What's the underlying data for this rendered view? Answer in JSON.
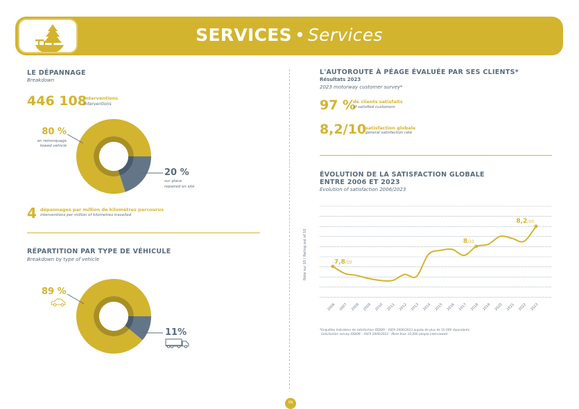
{
  "header": {
    "title_bold": "SERVICES",
    "separator": "•",
    "title_italic": "Services",
    "logo_icon": "picnic-tree-icon",
    "color": "#d3b42e"
  },
  "breakdown": {
    "title": "LE DÉPANNAGE",
    "subtitle": "Breakdown",
    "total_value": "446 108",
    "total_label_fr": "interventions",
    "total_label_en": "interventions",
    "towed_pct": "80 %",
    "towed_fr": "en remorquage",
    "towed_en": "towed vehicle",
    "onsite_pct": "20 %",
    "onsite_fr": "sur place",
    "onsite_en": "repaired on site",
    "per_million_value": "4",
    "per_million_fr": "dépannages par million de kilomètres parcourus",
    "per_million_en": "interventions per million of kilometres travelled"
  },
  "vehicle_type": {
    "title": "RÉPARTITION PAR TYPE DE VÉHICULE",
    "subtitle": "Breakdown by type of vehicle",
    "car_pct": "89 %",
    "car_icon": "car-icon",
    "truck_pct": "11%",
    "truck_icon": "truck-icon"
  },
  "survey": {
    "title": "L'AUTOROUTE À PÉAGE ÉVALUÉE PAR SES CLIENTS*",
    "results": "Résultats 2023",
    "subtitle": "2023 motorway customer survey*",
    "satisfied_value": "97 %",
    "satisfied_fr": "de clients satisfaits",
    "satisfied_en": "of satisfied customers",
    "rating_value": "8,2/10",
    "rating_fr": "satisfaction globale",
    "rating_en": "general satisfaction rate"
  },
  "evolution": {
    "title_line1": "ÉVOLUTION DE LA SATISFACTION GLOBALE",
    "title_line2": "ENTRE 2006 ET 2023",
    "subtitle": "Evolution of satisfaction 2006/2023",
    "footnote_fr": "*Enquêtes Indicateur de satisfaction IDDEM – ASFA 2006/2023 auprès de plus de 10 000 répondants",
    "footnote_en": "Satisfaction survey IDDEM – ASFA 2006/2023 - More than 10,000 people interviewed"
  },
  "page_number": "09",
  "chart_data": [
    {
      "type": "pie",
      "title": "LE DÉPANNAGE",
      "labels": [
        "en remorquage / towed vehicle",
        "sur place / repaired on site"
      ],
      "values": [
        80,
        20
      ],
      "colors": [
        "#d3b42e",
        "#627688"
      ]
    },
    {
      "type": "pie",
      "title": "RÉPARTITION PAR TYPE DE VÉHICULE",
      "labels": [
        "car",
        "truck"
      ],
      "values": [
        89,
        11
      ],
      "colors": [
        "#d3b42e",
        "#627688"
      ]
    },
    {
      "type": "line",
      "title": "ÉVOLUTION DE LA SATISFACTION GLOBALE ENTRE 2006 ET 2023",
      "ylabel": "Note sur 10 / Rating out of 10",
      "xlabel": "",
      "x": [
        "2006",
        "2007",
        "2008",
        "2009",
        "2010",
        "2011",
        "2012",
        "2013",
        "2014",
        "2015",
        "2016",
        "2017",
        "2018",
        "2019",
        "2020",
        "2021",
        "2022",
        "2023"
      ],
      "series": [
        {
          "name": "Satisfaction",
          "values": [
            7.8,
            7.73,
            7.71,
            7.68,
            7.66,
            7.66,
            7.72,
            7.7,
            7.92,
            7.96,
            7.97,
            7.91,
            8.0,
            8.02,
            8.1,
            8.08,
            8.05,
            8.2
          ]
        }
      ],
      "annotations": [
        {
          "x": "2006",
          "label": "7,8",
          "suffix": "/10"
        },
        {
          "x": "2018",
          "label": "8",
          "suffix": "/10"
        },
        {
          "x": "2023",
          "label": "8,2",
          "suffix": "/10"
        }
      ],
      "grid": true,
      "color": "#d3b42e"
    }
  ]
}
